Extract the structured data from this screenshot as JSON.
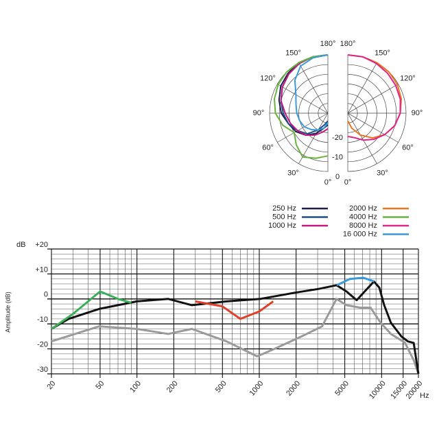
{
  "chart_data": [
    {
      "type": "polar",
      "theta": [
        0,
        15,
        30,
        45,
        60,
        75,
        90,
        105,
        120,
        135,
        150,
        165,
        180
      ],
      "thetaticks": [
        {
          "value": 0,
          "label": "0°"
        },
        {
          "value": 30,
          "label": "30°"
        },
        {
          "value": 60,
          "label": "60°"
        },
        {
          "value": 90,
          "label": "90°"
        },
        {
          "value": 120,
          "label": "120°"
        },
        {
          "value": 150,
          "label": "150°"
        },
        {
          "value": 180,
          "label": "180°"
        }
      ],
      "rlim": [
        -30,
        0
      ],
      "rticks": [
        -20,
        -10,
        0
      ],
      "rgrid": [
        -25,
        -20,
        -15,
        -10,
        -5,
        0
      ],
      "series": [
        {
          "name": "250 Hz",
          "color": "#1c1f4e",
          "side": "left",
          "values": [
            -24,
            -22,
            -18,
            -14,
            -11,
            -9,
            -6,
            -4,
            -2,
            -1,
            0,
            0,
            0
          ]
        },
        {
          "name": "500 Hz",
          "color": "#1e4e8c",
          "side": "left",
          "values": [
            -26,
            -24,
            -20,
            -15,
            -12,
            -9,
            -7,
            -5,
            -3,
            -1.5,
            -0.5,
            0,
            0
          ]
        },
        {
          "name": "1000 Hz",
          "color": "#c2187e",
          "side": "left",
          "values": [
            -22,
            -20,
            -17,
            -14,
            -12,
            -10,
            -8,
            -5,
            -3,
            -1.5,
            -0.5,
            0,
            0
          ]
        },
        {
          "name": "2000 Hz",
          "color": "#e87722",
          "side": "right",
          "values": [
            -26,
            -22,
            -17,
            -12,
            -8,
            -5,
            -3,
            -1.5,
            -0.5,
            0,
            0,
            0,
            0
          ]
        },
        {
          "name": "4000 Hz",
          "color": "#6ab23e",
          "side": "left",
          "values": [
            -8,
            -6,
            -4,
            -7,
            -10,
            -6,
            -3,
            -1.5,
            -0.5,
            0,
            0,
            0,
            0
          ]
        },
        {
          "name": "8000 Hz",
          "color": "#e0248a",
          "side": "right",
          "values": [
            -18,
            -17,
            -14,
            -11,
            -8,
            -5,
            -3,
            -2,
            -1.5,
            -1,
            -0.5,
            0,
            0
          ]
        },
        {
          "name": "16 000 Hz",
          "color": "#3a9ad9",
          "side": "left",
          "values": [
            -25,
            -22,
            -20,
            -18,
            -16,
            -15,
            -14,
            -13,
            -11,
            -6,
            -2,
            -0.5,
            0
          ]
        }
      ]
    },
    {
      "type": "line",
      "ylabel": "Amplitude (dB)",
      "yunit": "dB",
      "xunit": "Hz",
      "xscale": "log",
      "xlim": [
        20,
        20000
      ],
      "ylim": [
        -30,
        20
      ],
      "xticks": [
        20,
        50,
        100,
        200,
        500,
        1000,
        2000,
        5000,
        10000,
        15000,
        20000
      ],
      "yticks": [
        -30,
        -20,
        -10,
        0,
        {
          "value": 10,
          "label": "+10"
        },
        {
          "value": 20,
          "label": "+20"
        }
      ],
      "xminor": [
        30,
        40,
        60,
        70,
        80,
        90,
        300,
        400,
        600,
        700,
        800,
        900,
        3000,
        4000,
        6000,
        7000,
        8000,
        9000
      ],
      "yminor": [
        -28,
        -26,
        -24,
        -22,
        -18,
        -16,
        -14,
        -12,
        -8,
        -6,
        -4,
        -2,
        2,
        4,
        6,
        8,
        12,
        14,
        16,
        18
      ],
      "series": [
        {
          "color": "#9a9a9a",
          "x": [
            20,
            49,
            100,
            180,
            281,
            540,
            960,
            1330,
            2220,
            3260,
            4280,
            5160,
            6680,
            8120,
            9820,
            11900,
            15500,
            18300,
            20000
          ],
          "values": [
            -17,
            -11,
            -12,
            -14,
            -12,
            -17,
            -23,
            -20,
            -15,
            -11,
            0,
            -2.5,
            -3.5,
            -3.5,
            -9.5,
            -14,
            -17.5,
            -24.5,
            -30
          ]
        },
        {
          "color": "#111111",
          "x": [
            20,
            27.6,
            49,
            100,
            180,
            281,
            540,
            1020,
            1960,
            3060,
            4280,
            5160,
            6260,
            7280,
            8660,
            9580,
            10500,
            11900,
            14500,
            16400,
            18300,
            20000
          ],
          "values": [
            -12,
            -8,
            -4,
            -1,
            0,
            -2.5,
            -1,
            0,
            2.5,
            4,
            5.5,
            3,
            -0.5,
            3,
            7,
            4.5,
            -2.5,
            -9.5,
            -15,
            -17,
            -17.6,
            -30
          ]
        },
        {
          "color": "#3cae5a",
          "x": [
            20,
            30,
            50,
            70,
            90
          ],
          "values": [
            -12,
            -6,
            3,
            0,
            -1.5
          ]
        },
        {
          "color": "#e0402a",
          "x": [
            300,
            500,
            700,
            1000,
            1300
          ],
          "values": [
            -1,
            -3,
            -8,
            -5,
            -1
          ]
        },
        {
          "color": "#3a9ad9",
          "x": [
            4300,
            5500,
            7100,
            8700
          ],
          "values": [
            5.5,
            8,
            8.5,
            7
          ]
        }
      ]
    }
  ]
}
